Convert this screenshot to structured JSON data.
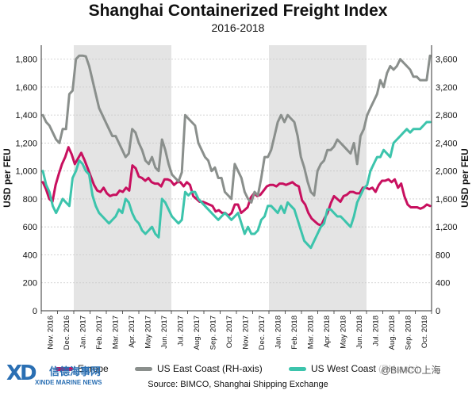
{
  "chart_data": {
    "type": "line",
    "title": "Shanghai Containerized Freight Index",
    "subtitle": "2016-2018",
    "ylabel_left": "USD per FEU",
    "ylabel_right": "USD per FEU",
    "ylim_left": [
      0,
      1900
    ],
    "ylim_right": [
      0,
      3800
    ],
    "left_ticks": [
      "0",
      "200",
      "400",
      "600",
      "800",
      "1,000",
      "1,200",
      "1,400",
      "1,600",
      "1,800"
    ],
    "right_ticks": [
      "0",
      "400",
      "800",
      "1,200",
      "1,600",
      "2,000",
      "2,400",
      "2,800",
      "3,200",
      "3,600"
    ],
    "x_ticks": [
      "Nov. 2016",
      "Dec. 2016",
      "Jan. 2017",
      "Feb. 2017",
      "Mar. 2017",
      "Apr. 2017",
      "May 2017",
      "Jun. 2017",
      "Jul. 2017",
      "Aug. 2017",
      "Sep. 2017",
      "Oct. 2017",
      "Nov. 2017",
      "Dec. 2017",
      "Jan. 2018",
      "Feb. 2018",
      "Mar. 2018",
      "Apr. 2018",
      "May 2018",
      "Jun. 2018",
      "Jul. 2018",
      "Aug. 2018",
      "Sep. 2018",
      "Oct. 2018"
    ],
    "shaded_ranges": [
      [
        2,
        8
      ],
      [
        14,
        20
      ]
    ],
    "grid": true,
    "legend_position": "bottom",
    "series": [
      {
        "name": "Europe",
        "axis": "left",
        "color": "#c8105f",
        "values": [
          920,
          870,
          800,
          780,
          900,
          980,
          1050,
          1100,
          1170,
          1120,
          1050,
          1090,
          1130,
          1080,
          1020,
          960,
          900,
          860,
          850,
          880,
          840,
          820,
          830,
          830,
          860,
          850,
          880,
          860,
          1040,
          1020,
          960,
          950,
          930,
          950,
          920,
          910,
          910,
          890,
          940,
          940,
          930,
          900,
          920,
          920,
          890,
          920,
          900,
          820,
          800,
          780,
          780,
          770,
          760,
          750,
          710,
          720,
          700,
          700,
          680,
          700,
          760,
          760,
          700,
          720,
          740,
          810,
          840,
          820,
          830,
          860,
          890,
          900,
          900,
          890,
          910,
          910,
          900,
          910,
          920,
          900,
          890,
          790,
          760,
          700,
          660,
          640,
          620,
          610,
          660,
          700,
          770,
          820,
          800,
          780,
          820,
          830,
          850,
          850,
          840,
          840,
          880,
          880,
          870,
          880,
          850,
          900,
          930,
          930,
          940,
          920,
          940,
          880,
          910,
          820,
          760,
          740,
          740,
          740,
          730,
          740,
          760,
          750
        ]
      },
      {
        "name": "US East Coast (RH-axis)",
        "axis": "right",
        "color": "#8a8f8c",
        "values": [
          2800,
          2700,
          2650,
          2550,
          2450,
          2400,
          2600,
          2600,
          3100,
          3150,
          3600,
          3650,
          3650,
          3640,
          3500,
          3300,
          3100,
          2900,
          2800,
          2700,
          2600,
          2500,
          2500,
          2400,
          2300,
          2200,
          2250,
          2600,
          2550,
          2400,
          2300,
          2150,
          2100,
          2200,
          2050,
          2000,
          2450,
          2300,
          2100,
          1950,
          1900,
          1850,
          1980,
          2800,
          2750,
          2700,
          2650,
          2400,
          2300,
          2200,
          2150,
          2000,
          2050,
          1900,
          1900,
          1700,
          1650,
          1600,
          2100,
          2000,
          1900,
          1700,
          1600,
          1550,
          1700,
          1650,
          1900,
          2200,
          2200,
          2300,
          2500,
          2700,
          2800,
          2700,
          2800,
          2750,
          2700,
          2500,
          2200,
          2050,
          1850,
          1700,
          1650,
          2000,
          2100,
          2150,
          2300,
          2300,
          2350,
          2450,
          2400,
          2350,
          2300,
          2250,
          2400,
          2100,
          2500,
          2600,
          2800,
          2900,
          3000,
          3100,
          3300,
          3200,
          3400,
          3500,
          3450,
          3500,
          3600,
          3550,
          3500,
          3450,
          3350,
          3350,
          3300,
          3300,
          3300,
          3650
        ]
      },
      {
        "name": "US West Coast (RH-axis)",
        "axis": "right",
        "color": "#3cc4ac",
        "values": [
          2000,
          1800,
          1700,
          1500,
          1400,
          1500,
          1600,
          1550,
          1500,
          1900,
          2000,
          2150,
          2100,
          2000,
          1950,
          1650,
          1500,
          1400,
          1350,
          1300,
          1250,
          1300,
          1350,
          1450,
          1400,
          1600,
          1550,
          1400,
          1300,
          1250,
          1150,
          1100,
          1150,
          1200,
          1100,
          1050,
          1600,
          1550,
          1450,
          1350,
          1300,
          1250,
          1300,
          1700,
          1650,
          1700,
          1700,
          1600,
          1550,
          1500,
          1450,
          1400,
          1350,
          1300,
          1350,
          1400,
          1350,
          1300,
          1350,
          1400,
          1250,
          1100,
          1200,
          1100,
          1100,
          1150,
          1300,
          1350,
          1500,
          1500,
          1450,
          1400,
          1500,
          1400,
          1550,
          1500,
          1450,
          1300,
          1150,
          1000,
          950,
          900,
          1000,
          1100,
          1200,
          1250,
          1450,
          1450,
          1400,
          1350,
          1350,
          1300,
          1250,
          1200,
          1350,
          1550,
          1650,
          1750,
          1800,
          2000,
          2100,
          2200,
          2200,
          2300,
          2250,
          2200,
          2400,
          2450,
          2500,
          2550,
          2600,
          2550,
          2600,
          2600,
          2600,
          2650,
          2700,
          2700
        ]
      }
    ]
  },
  "legend": [
    {
      "label": "Europe",
      "color": "#c8105f"
    },
    {
      "label": "US East Coast (RH-axis)",
      "color": "#8a8f8c"
    },
    {
      "label": "US West Coast (RH-axis)",
      "color": "#3cc4ac"
    }
  ],
  "source": "Source: BIMCO, Shanghai Shipping Exchange",
  "logo": {
    "mark": "XD",
    "cn": "信德海事网",
    "en": "XINDE MARINE NEWS"
  },
  "watermark": "@BIMCO上海"
}
